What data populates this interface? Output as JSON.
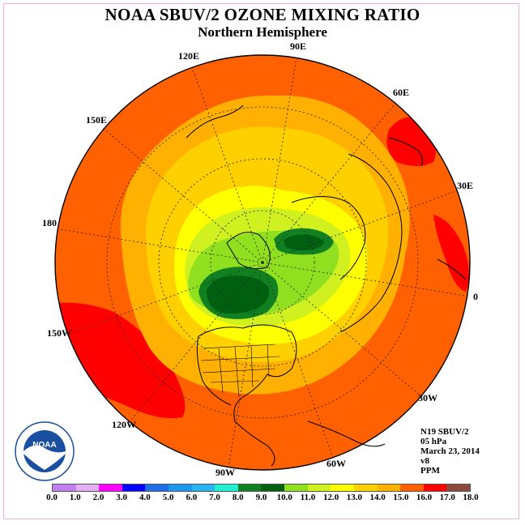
{
  "title": "NOAA SBUV/2 OZONE MIXING RATIO",
  "subtitle": "Northern Hemisphere",
  "longitude_labels": {
    "e90": "90E",
    "e60": "60E",
    "e30": "30E",
    "zero": "0",
    "w30": "30W",
    "w60": "60W",
    "w90": "90W",
    "w120": "120W",
    "w150": "150W",
    "d180": "180",
    "e150": "150E",
    "e120": "120E"
  },
  "info": {
    "instrument": "N19 SBUV/2",
    "pressure": "05 hPa",
    "date": "March 23, 2014",
    "version": "v8",
    "units": "PPM"
  },
  "logo": {
    "text": "NOAA",
    "ring_text": "NATIONAL OCEANIC AND ATMOSPHERIC ADMINISTRATION U.S. DEPARTMENT OF COMMERCE"
  },
  "colorbar": {
    "colors": [
      "#c080f0",
      "#e0b0f0",
      "#ff00ff",
      "#0000ff",
      "#1e6ee6",
      "#1e96ee",
      "#28b4f0",
      "#20f0d0",
      "#108020",
      "#006010",
      "#90e020",
      "#d0f020",
      "#ffff00",
      "#ffd000",
      "#ffb000",
      "#ff6000",
      "#ff0000",
      "#8b4a3c"
    ],
    "tick_labels": [
      "0.0",
      "1.0",
      "2.0",
      "3.0",
      "4.0",
      "5.0",
      "6.0",
      "7.0",
      "8.0",
      "9.0",
      "10.0",
      "11.0",
      "12.0",
      "13.0",
      "14.0",
      "15.0",
      "16.0",
      "17.0",
      "18.0"
    ]
  },
  "field_colors": {
    "outer": "#ff6000",
    "ring1": "#ffb000",
    "ring2": "#ffd000",
    "ring3": "#ffff00",
    "ring4": "#d0f020",
    "ring5": "#90e020",
    "core": "#108020",
    "core_dark": "#006010",
    "max": "#ff0000"
  }
}
